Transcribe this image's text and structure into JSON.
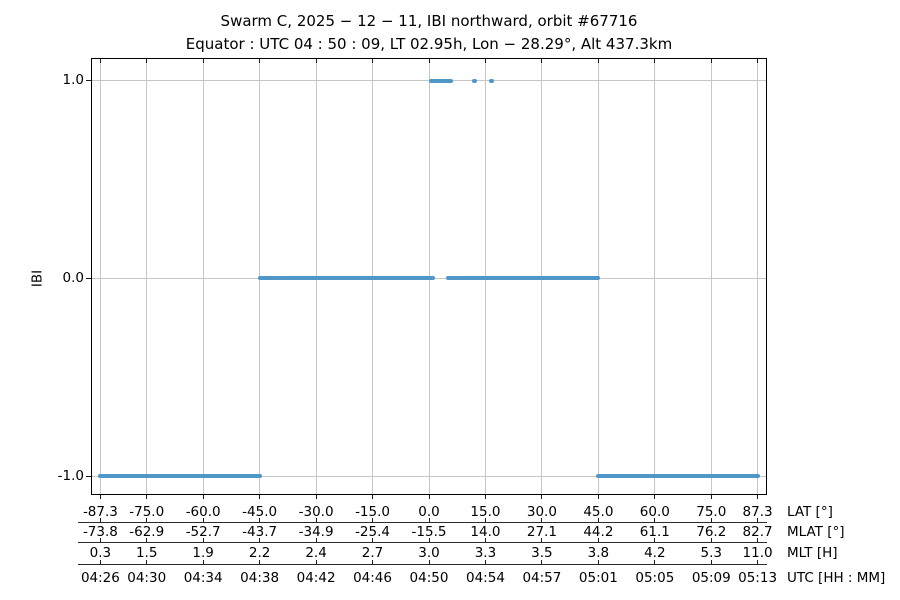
{
  "chart_data": {
    "type": "line",
    "title": "Swarm C, 2025 − 12 − 11, IBI northward, orbit #67716",
    "subtitle": "Equator : UTC 04 : 50 : 09, LT 02.95h, Lon − 28.29°, Alt 437.3km",
    "ylabel": "IBI",
    "line_color": "#4f97c9",
    "grid_color": "#c6c6c6",
    "grid": true,
    "ylim": [
      -1.095,
      1.115
    ],
    "xlim_lat": [
      -89.8,
      89.8
    ],
    "yticks": [
      {
        "value": 1.0,
        "label": "1.0"
      },
      {
        "value": 0.0,
        "label": "0.0"
      },
      {
        "value": -1.0,
        "label": "-1.0"
      }
    ],
    "tick_lat_positions": [
      -87.3,
      -75.0,
      -60.0,
      -45.0,
      -30.0,
      -15.0,
      0.0,
      15.0,
      30.0,
      45.0,
      60.0,
      75.0,
      87.3
    ],
    "segments": [
      {
        "y": -1,
        "from": -87.3,
        "to": -45.0
      },
      {
        "y": -1,
        "from": 45.0,
        "to": 87.3
      },
      {
        "y": 0,
        "from": -45.0,
        "to": 1.1
      },
      {
        "y": 0,
        "from": 5.1,
        "to": 45.0
      },
      {
        "y": 1,
        "from": 0.6,
        "to": 5.9
      }
    ],
    "points": [
      {
        "y": 1,
        "lat": 12.2
      },
      {
        "y": 1,
        "lat": 16.5
      }
    ],
    "x_axes": [
      {
        "name": "lat",
        "label": "LAT [°]",
        "values": [
          "-87.3",
          "-75.0",
          "-60.0",
          "-45.0",
          "-30.0",
          "-15.0",
          "0.0",
          "15.0",
          "30.0",
          "45.0",
          "60.0",
          "75.0",
          "87.3"
        ]
      },
      {
        "name": "mlat",
        "label": "MLAT [°]",
        "values": [
          "-73.8",
          "-62.9",
          "-52.7",
          "-43.7",
          "-34.9",
          "-25.4",
          "-15.5",
          "14.0",
          "27.1",
          "44.2",
          "61.1",
          "76.2",
          "82.7"
        ]
      },
      {
        "name": "mlt",
        "label": "MLT [H]",
        "values": [
          "0.3",
          "1.5",
          "1.9",
          "2.2",
          "2.4",
          "2.7",
          "3.0",
          "3.3",
          "3.5",
          "3.8",
          "4.2",
          "5.3",
          "11.0"
        ]
      },
      {
        "name": "utc",
        "label": "UTC [HH : MM]",
        "values": [
          "04:26",
          "04:30",
          "04:34",
          "04:38",
          "04:42",
          "04:46",
          "04:50",
          "04:54",
          "04:57",
          "05:01",
          "05:05",
          "05:09",
          "05:13"
        ]
      }
    ]
  }
}
